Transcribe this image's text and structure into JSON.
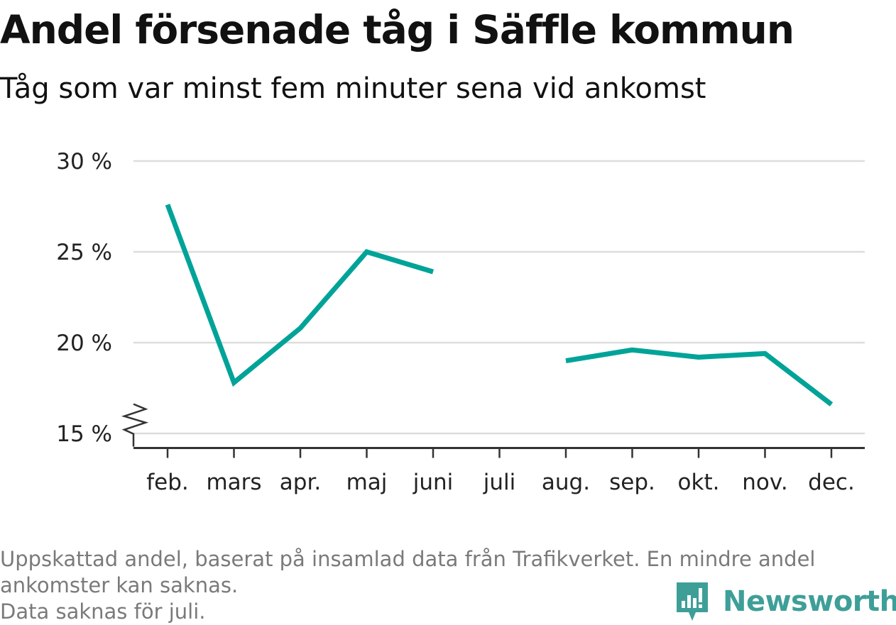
{
  "header": {
    "title": "Andel försenade tåg i Säffle kommun",
    "subtitle": "Tåg som var minst fem minuter sena vid ankomst"
  },
  "footnote": {
    "line1": "Uppskattad andel, baserat på insamlad data från Trafikverket. En mindre andel",
    "line2": "ankomster kan saknas.",
    "line3": "Data saknas för juli."
  },
  "logo": {
    "text": "Newsworthy",
    "icon": "newsworthy-bar-chart-icon",
    "color": "#3e9f98"
  },
  "chart_data": {
    "type": "line",
    "title": "Andel försenade tåg i Säffle kommun",
    "subtitle": "Tåg som var minst fem minuter sena vid ankomst",
    "categories": [
      "feb.",
      "mars",
      "apr.",
      "maj",
      "juni",
      "juli",
      "aug.",
      "sep.",
      "okt.",
      "nov.",
      "dec."
    ],
    "series": [
      {
        "color": "#00a398",
        "values": [
          27.6,
          17.8,
          20.8,
          25.0,
          23.9,
          null,
          19.0,
          19.6,
          19.2,
          19.4,
          16.6
        ]
      }
    ],
    "yticks": [
      15,
      20,
      25,
      30
    ],
    "ytick_labels": [
      "15 %",
      "20 %",
      "25 %",
      "30 %"
    ],
    "ylim": [
      14.2,
      30
    ],
    "y_axis_break": true,
    "grid": true,
    "legend": "none",
    "gridline_color": "#dddddd",
    "axis_color": "#333333"
  }
}
